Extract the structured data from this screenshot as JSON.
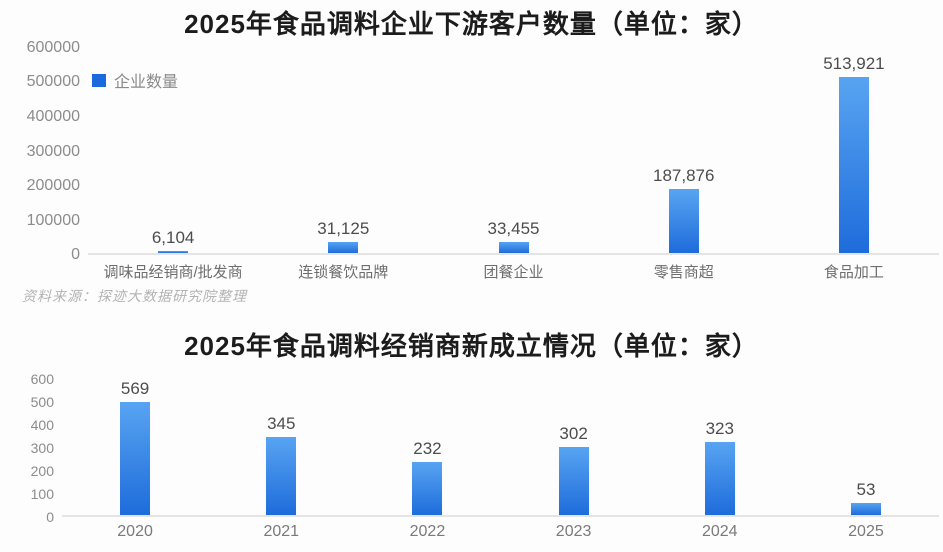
{
  "page": {
    "source_note": "资料来源：探迹大数据研究院整理"
  },
  "colors": {
    "bar_top": "#58a4f2",
    "bar_bottom": "#1e6cdb",
    "legend_swatch": "#1a6add",
    "axis_label": "#8c8c8c",
    "data_label": "#4d4d4d",
    "title": "#1c1c1c",
    "source": "#b3b3b3",
    "axis_line": "#e4e4e4"
  },
  "chart_data": [
    {
      "type": "bar",
      "title": "2025年食品调料企业下游客户数量（单位：家）",
      "legend": "企业数量",
      "legend_position": "top-left",
      "categories": [
        "调味品经销商/批发商",
        "连锁餐饮品牌",
        "团餐企业",
        "零售商超",
        "食品加工"
      ],
      "values": [
        6104,
        31125,
        33455,
        187876,
        513921
      ],
      "labels": [
        "6,104",
        "31,125",
        "33,455",
        "187,876",
        "513,921"
      ],
      "ylim": [
        0,
        600000
      ],
      "yticks": [
        "600000",
        "500000",
        "400000",
        "300000",
        "200000",
        "100000",
        "0"
      ],
      "grid": false
    },
    {
      "type": "bar",
      "title": "2025年食品调料经销商新成立情况（单位：家）",
      "categories": [
        "2020",
        "2021",
        "2022",
        "2023",
        "2024",
        "2025"
      ],
      "values": [
        569,
        345,
        232,
        302,
        323,
        53
      ],
      "labels": [
        "569",
        "345",
        "232",
        "302",
        "323",
        "53"
      ],
      "ylim": [
        0,
        600
      ],
      "yticks": [
        "600",
        "500",
        "400",
        "300",
        "200",
        "100",
        "0"
      ],
      "grid": false
    }
  ]
}
